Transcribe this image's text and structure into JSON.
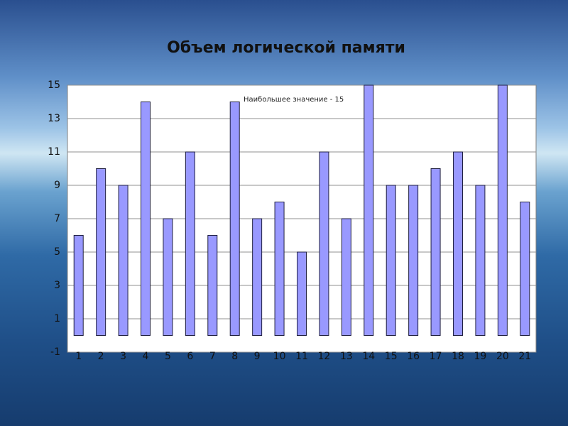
{
  "chart_data": {
    "type": "bar",
    "title": "Объем логической памяти",
    "annotation": "Наибольшее значение - 15",
    "categories": [
      "1",
      "2",
      "3",
      "4",
      "5",
      "6",
      "7",
      "8",
      "9",
      "10",
      "11",
      "12",
      "13",
      "14",
      "15",
      "16",
      "17",
      "18",
      "19",
      "20",
      "21"
    ],
    "values": [
      6,
      10,
      9,
      14,
      7,
      11,
      6,
      14,
      7,
      8,
      5,
      11,
      7,
      15,
      9,
      9,
      10,
      11,
      9,
      15,
      8
    ],
    "color": "#9999ff",
    "ylim": [
      -1,
      15
    ],
    "yticks": [
      -1,
      1,
      3,
      5,
      7,
      9,
      11,
      13,
      15
    ],
    "grid": true
  }
}
